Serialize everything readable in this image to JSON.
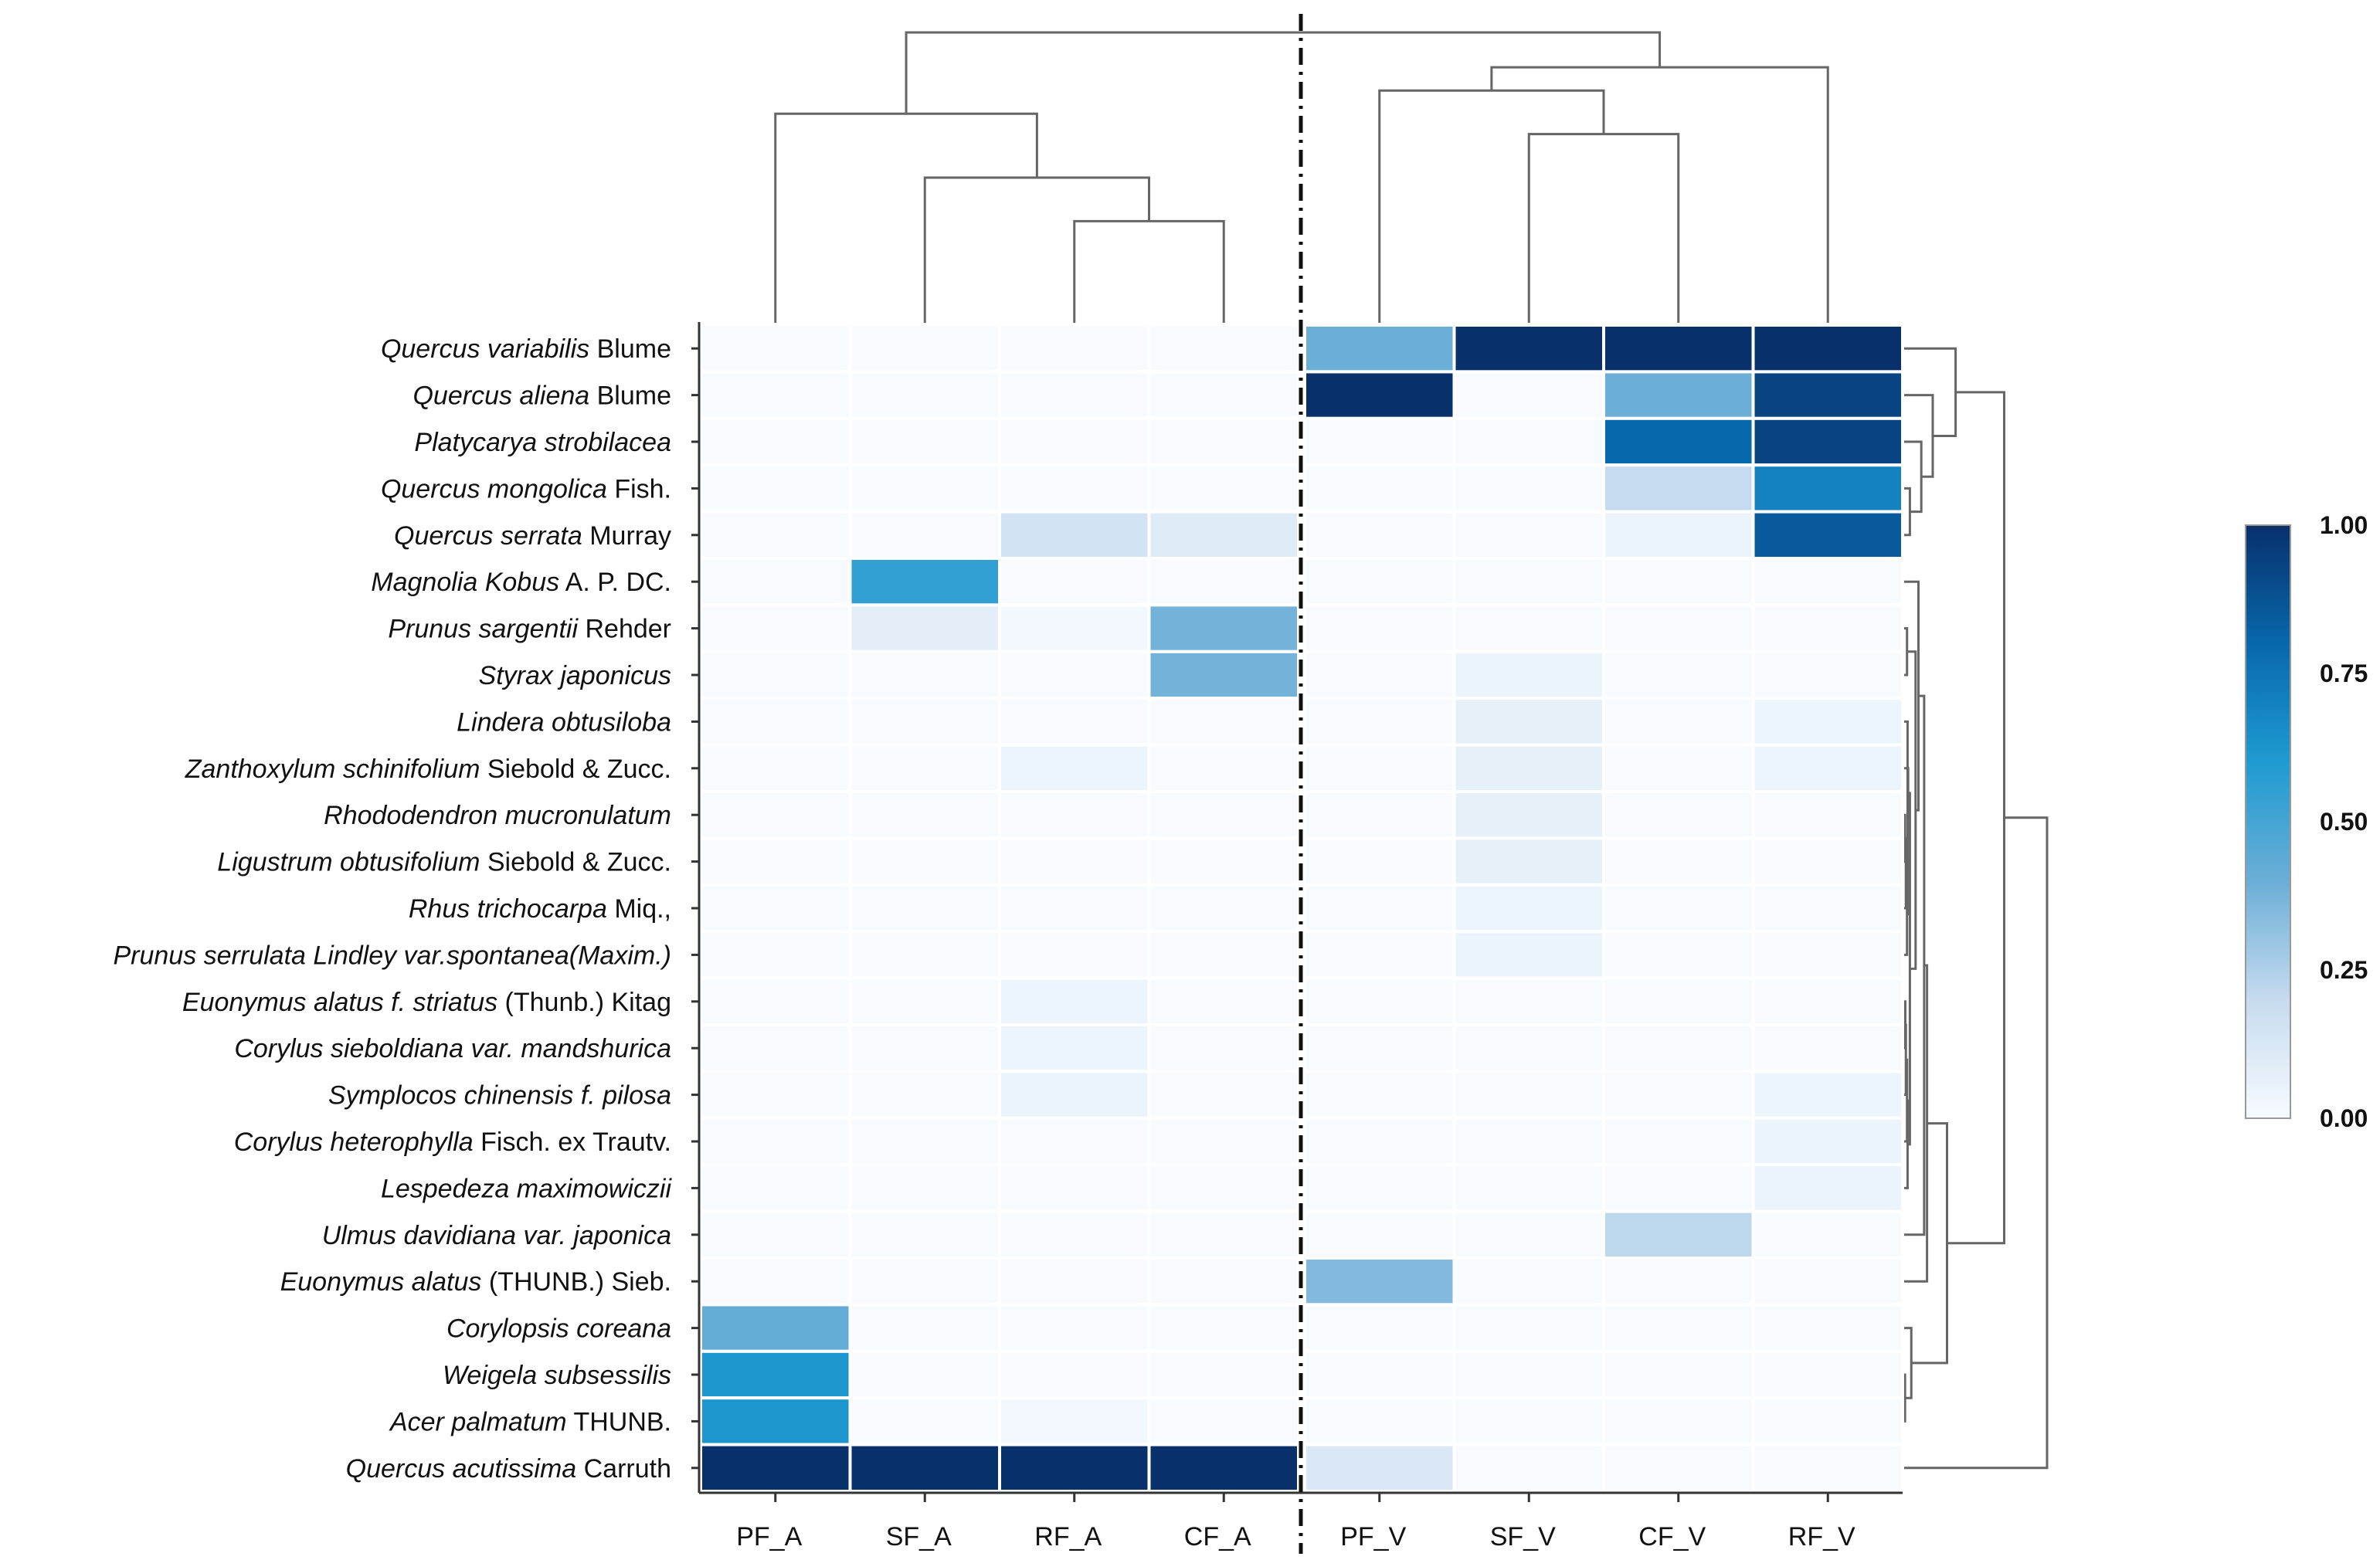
{
  "chart_data": {
    "type": "heatmap",
    "columns": [
      "PF_A",
      "SF_A",
      "RF_A",
      "CF_A",
      "PF_V",
      "SF_V",
      "CF_V",
      "RF_V"
    ],
    "rows": [
      {
        "genus": "Quercus variabilis",
        "author": " Blume"
      },
      {
        "genus": "Quercus aliena",
        "author": " Blume"
      },
      {
        "genus": "Platycarya strobilacea",
        "author": ""
      },
      {
        "genus": "Quercus mongolica",
        "author": " Fish."
      },
      {
        "genus": "Quercus serrata",
        "author": " Murray"
      },
      {
        "genus": "Magnolia Kobus",
        "author": " A. P. DC."
      },
      {
        "genus": "Prunus sargentii",
        "author": " Rehder"
      },
      {
        "genus": "Styrax japonicus",
        "author": ""
      },
      {
        "genus": "Lindera obtusiloba",
        "author": ""
      },
      {
        "genus": "Zanthoxylum schinifolium",
        "author": " Siebold & Zucc."
      },
      {
        "genus": "Rhododendron mucronulatum",
        "author": ""
      },
      {
        "genus": "Ligustrum obtusifolium",
        "author": " Siebold & Zucc."
      },
      {
        "genus": "Rhus trichocarpa",
        "author": " Miq.,"
      },
      {
        "genus": "Prunus serrulata Lindley var.spontanea(Maxim.)",
        "author": ""
      },
      {
        "genus": "Euonymus alatus f. striatus",
        "author": " (Thunb.) Kitag"
      },
      {
        "genus": "Corylus sieboldiana var. mandshurica",
        "author": ""
      },
      {
        "genus": "Symplocos chinensis f. pilosa",
        "author": ""
      },
      {
        "genus": "Corylus heterophylla",
        "author": " Fisch. ex Trautv."
      },
      {
        "genus": "Lespedeza maximowiczii",
        "author": ""
      },
      {
        "genus": "Ulmus davidiana var. japonica",
        "author": ""
      },
      {
        "genus": "Euonymus alatus",
        "author": " (THUNB.) Sieb."
      },
      {
        "genus": "Corylopsis coreana",
        "author": ""
      },
      {
        "genus": "Weigela subsessilis",
        "author": ""
      },
      {
        "genus": "Acer palmatum",
        "author": " THUNB."
      },
      {
        "genus": "Quercus acutissima",
        "author": " Carruth"
      }
    ],
    "values": [
      [
        0.0,
        0.0,
        0.0,
        0.0,
        0.4,
        1.0,
        1.0,
        1.0
      ],
      [
        0.0,
        0.0,
        0.0,
        0.0,
        1.0,
        0.0,
        0.4,
        0.93
      ],
      [
        0.0,
        0.0,
        0.0,
        0.0,
        0.0,
        0.0,
        0.8,
        0.93
      ],
      [
        0.0,
        0.0,
        0.0,
        0.0,
        0.0,
        0.0,
        0.2,
        0.7
      ],
      [
        0.0,
        0.0,
        0.15,
        0.1,
        0.0,
        0.0,
        0.05,
        0.85
      ],
      [
        0.0,
        0.55,
        0.0,
        0.0,
        0.0,
        0.0,
        0.0,
        0.0
      ],
      [
        0.0,
        0.08,
        0.02,
        0.38,
        0.0,
        0.0,
        0.0,
        0.0
      ],
      [
        0.0,
        0.0,
        0.0,
        0.38,
        0.0,
        0.05,
        0.0,
        0.0
      ],
      [
        0.0,
        0.0,
        0.0,
        0.0,
        0.0,
        0.07,
        0.0,
        0.04
      ],
      [
        0.0,
        0.0,
        0.04,
        0.0,
        0.0,
        0.07,
        0.0,
        0.04
      ],
      [
        0.0,
        0.0,
        0.0,
        0.0,
        0.0,
        0.07,
        0.0,
        0.0
      ],
      [
        0.0,
        0.0,
        0.0,
        0.0,
        0.0,
        0.07,
        0.0,
        0.0
      ],
      [
        0.0,
        0.0,
        0.0,
        0.0,
        0.0,
        0.04,
        0.0,
        0.0
      ],
      [
        0.0,
        0.0,
        0.0,
        0.0,
        0.0,
        0.05,
        0.0,
        0.0
      ],
      [
        0.0,
        0.0,
        0.04,
        0.0,
        0.0,
        0.0,
        0.0,
        0.0
      ],
      [
        0.0,
        0.0,
        0.04,
        0.0,
        0.0,
        0.0,
        0.0,
        0.0
      ],
      [
        0.0,
        0.0,
        0.05,
        0.0,
        0.0,
        0.0,
        0.0,
        0.04
      ],
      [
        0.0,
        0.0,
        0.0,
        0.0,
        0.0,
        0.0,
        0.0,
        0.05
      ],
      [
        0.0,
        0.0,
        0.0,
        0.0,
        0.0,
        0.0,
        0.0,
        0.05
      ],
      [
        0.0,
        0.0,
        0.0,
        0.0,
        0.0,
        0.0,
        0.22,
        0.0
      ],
      [
        0.0,
        0.0,
        0.0,
        0.0,
        0.35,
        0.0,
        0.0,
        0.0
      ],
      [
        0.42,
        0.0,
        0.0,
        0.0,
        0.0,
        0.0,
        0.0,
        0.0
      ],
      [
        0.62,
        0.0,
        0.0,
        0.0,
        0.0,
        0.0,
        0.0,
        0.0
      ],
      [
        0.62,
        0.0,
        0.02,
        0.0,
        0.0,
        0.0,
        0.0,
        0.0
      ],
      [
        1.0,
        1.0,
        1.0,
        1.0,
        0.12,
        0.0,
        0.0,
        0.0
      ]
    ],
    "colorbar": {
      "ticks": [
        "1.00",
        "0.75",
        "0.50",
        "0.25",
        "0.00"
      ],
      "range": [
        0,
        1
      ],
      "colors": [
        "#f7fbff",
        "#c6dbef",
        "#6baed6",
        "#1f9bd1",
        "#0868ac",
        "#08306b"
      ]
    },
    "column_dendrogram": {
      "merges": [
        [
          2,
          3,
          0.35
        ],
        [
          1,
          8,
          0.5
        ],
        [
          0,
          9,
          0.72
        ],
        [
          5,
          6,
          0.65
        ],
        [
          4,
          11,
          0.8
        ],
        [
          7,
          12,
          0.88
        ],
        [
          10,
          13,
          1.0
        ]
      ]
    },
    "row_dendrogram": {
      "merges": [
        [
          3,
          4,
          0.02
        ],
        [
          2,
          25,
          0.06
        ],
        [
          1,
          26,
          0.1
        ],
        [
          0,
          27,
          0.18
        ],
        [
          10,
          11,
          0.003
        ],
        [
          12,
          29,
          0.006
        ],
        [
          13,
          30,
          0.01
        ],
        [
          8,
          31,
          0.012
        ],
        [
          9,
          32,
          0.014
        ],
        [
          14,
          15,
          0.004
        ],
        [
          16,
          34,
          0.006
        ],
        [
          17,
          35,
          0.01
        ],
        [
          18,
          36,
          0.012
        ],
        [
          33,
          37,
          0.02
        ],
        [
          6,
          7,
          0.01
        ],
        [
          38,
          39,
          0.04
        ],
        [
          5,
          40,
          0.05
        ],
        [
          19,
          41,
          0.07
        ],
        [
          20,
          42,
          0.08
        ],
        [
          22,
          23,
          0.003
        ],
        [
          21,
          44,
          0.025
        ],
        [
          43,
          45,
          0.15
        ],
        [
          28,
          46,
          0.35
        ],
        [
          24,
          47,
          0.5
        ]
      ]
    },
    "divider": "between CF_A and PF_V"
  }
}
